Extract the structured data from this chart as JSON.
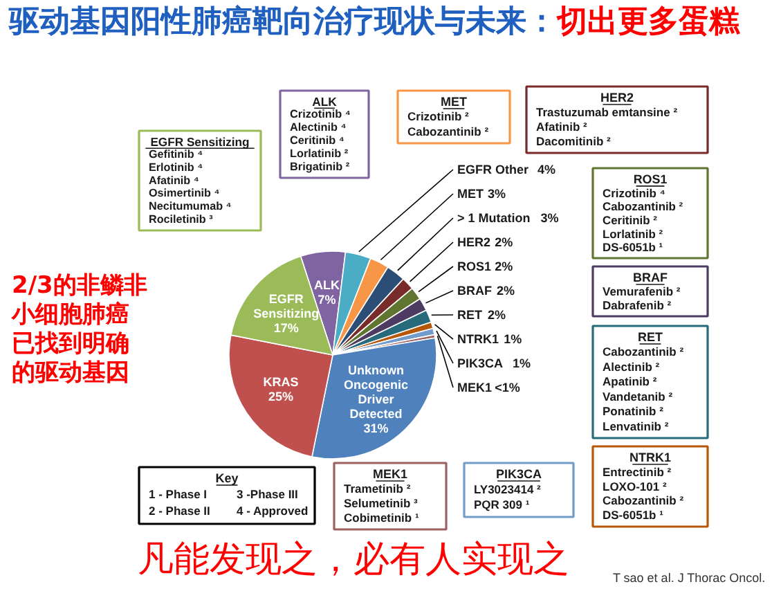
{
  "chart_data": {
    "type": "pie",
    "title": "驱动基因阳性肺癌靶向治疗现状与未来：",
    "subtitle": "切出更多蛋糕",
    "categories": [
      "ALK",
      "EGFR Other",
      "MET",
      "> 1 Mutation",
      "HER2",
      "ROS1",
      "BRAF",
      "RET",
      "NTRK1",
      "PIK3CA",
      "MEK1",
      "Unknown Oncogenic Driver Detected",
      "KRAS",
      "EGFR Sensitizing"
    ],
    "values": [
      7,
      4,
      3,
      3,
      2,
      2,
      2,
      2,
      1,
      1,
      0.5,
      31,
      25,
      17
    ],
    "value_labels": [
      "7%",
      "4%",
      "3%",
      "3%",
      "2%",
      "2%",
      "2%",
      "2%",
      "1%",
      "1%",
      "<1%",
      "31%",
      "25%",
      "17%"
    ],
    "colors": [
      "#8064a2",
      "#4bacc6",
      "#f79646",
      "#2c4d75",
      "#772c2a",
      "#5f7530",
      "#4d3b62",
      "#276a7c",
      "#b65708",
      "#729aca",
      "#a0605e",
      "#4f81bd",
      "#c0504d",
      "#9bbb59"
    ],
    "annotations": [
      "EGFR Sensitizing\nGefitinib ⁴\nErlotinib ⁴\nAfatinib ⁴\nOsimertinib ⁴\nNecitumumab ⁴\nRociletinib ³",
      "ALK\nCrizotinib ⁴\nAlectinib ⁴\nCeritinib ⁴\nLorlatinib ²\nBrigatinib ²",
      "MET\nCrizotinib ²\nCabozantinib ²",
      "HER2\nTrastuzumab emtansine ²\nAfatinib ²\nDacomitinib ²",
      "ROS1\nCrizotinib ⁴\nCabozantinib ²\nCeritinib ²\nLorlatinib ²\nDS-6051b ¹",
      "BRAF\nVemurafenib ²\nDabrafenib ²",
      "RET\nCabozantinib ²\nAlectinib ²\nApatinib ²\nVandetanib ²\nPonatinib ²\nLenvatinib ²",
      "NTRK1\nEntrectinib ²\nLOXO-101 ²\nCabozantinib ²\nDS-6051b ¹",
      "MEK1\nTrametinib ²\nSelumetinib ³\nCobimetinib ¹",
      "PIK3CA\nLY3023414 ²\nPQR 309 ¹",
      "Key\n1 - Phase I\n3 -Phase III\n2 - Phase II\n4 - Approved",
      "2/3的非鳞非小细胞肺癌已找到明确的驱动基因",
      "凡能发现之，必有人实现之",
      "T sao et al. J Thorac Oncol."
    ]
  }
}
